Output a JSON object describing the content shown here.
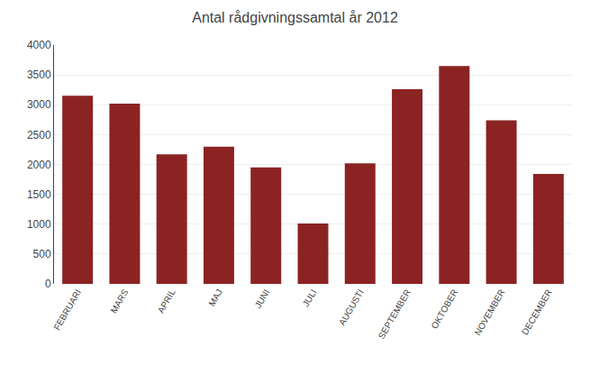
{
  "chart_data": {
    "type": "bar",
    "title": "Antal rådgivningssamtal år 2012",
    "categories": [
      "FEBRUARI",
      "MARS",
      "APRIL",
      "MAJ",
      "JUNI",
      "JULI",
      "AUGUSTI",
      "SEPTEMBER",
      "OKTOBER",
      "NOVEMBER",
      "DECEMBER"
    ],
    "values": [
      3150,
      3020,
      2170,
      2300,
      1950,
      1010,
      2020,
      3260,
      3650,
      2740,
      1840
    ],
    "color": "#8B2323",
    "ylim": [
      0,
      4000
    ],
    "yticks": [
      0,
      500,
      1000,
      1500,
      2000,
      2500,
      3000,
      3500,
      4000
    ],
    "grid": true
  }
}
